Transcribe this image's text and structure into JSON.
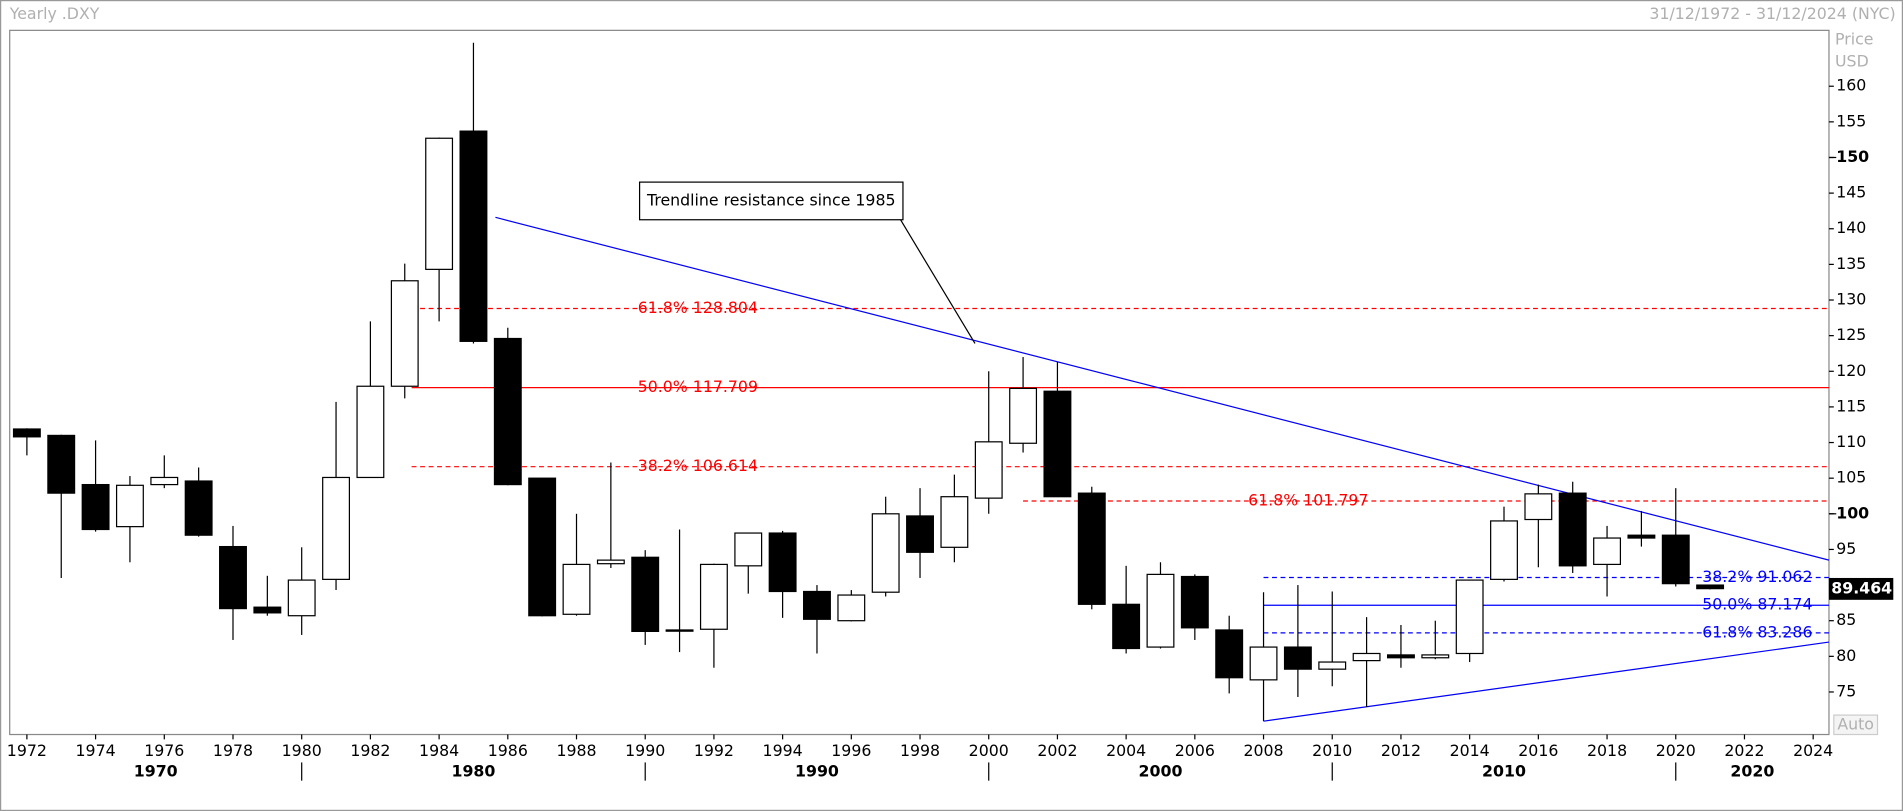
{
  "chart_data": {
    "type": "candlestick",
    "title": "Yearly .DXY",
    "subtitle": "31/12/1972 - 31/12/2024 (NYC)",
    "y_axis_label": "Price",
    "y_axis_unit": "USD",
    "button": "Auto",
    "x": [
      1972,
      1973,
      1974,
      1975,
      1976,
      1977,
      1978,
      1979,
      1980,
      1981,
      1982,
      1983,
      1984,
      1985,
      1986,
      1987,
      1988,
      1989,
      1990,
      1991,
      1992,
      1993,
      1994,
      1995,
      1996,
      1997,
      1998,
      1999,
      2000,
      2001,
      2002,
      2003,
      2004,
      2005,
      2006,
      2007,
      2008,
      2009,
      2010,
      2011,
      2012,
      2013,
      2014,
      2015,
      2016,
      2017,
      2018,
      2019,
      2020,
      2021
    ],
    "open": [
      111.9,
      111.0,
      104.1,
      98.2,
      104.1,
      104.6,
      95.4,
      86.9,
      85.7,
      90.8,
      105.1,
      117.9,
      134.3,
      153.7,
      124.6,
      105.0,
      85.9,
      93.0,
      93.9,
      83.7,
      83.8,
      92.7,
      97.3,
      89.1,
      85.0,
      89.0,
      99.7,
      95.3,
      102.2,
      109.9,
      117.2,
      102.9,
      87.3,
      81.3,
      91.2,
      83.7,
      76.7,
      81.3,
      78.2,
      79.4,
      80.2,
      79.8,
      80.4,
      90.8,
      99.2,
      102.9,
      92.9,
      97.0,
      97.0,
      90.0
    ],
    "high": [
      112.0,
      111.1,
      110.3,
      105.3,
      108.2,
      106.5,
      98.3,
      91.3,
      95.3,
      115.7,
      127.0,
      135.1,
      152.8,
      166.1,
      126.1,
      105.0,
      100.0,
      107.2,
      94.9,
      97.8,
      93.0,
      97.3,
      97.6,
      90.0,
      89.3,
      102.4,
      103.6,
      105.5,
      120.0,
      122.0,
      121.3,
      103.8,
      92.7,
      93.2,
      91.5,
      85.7,
      89.0,
      90.0,
      89.1,
      85.5,
      84.4,
      85.0,
      90.7,
      101.0,
      104.1,
      104.5,
      98.3,
      100.4,
      103.6,
      90.0
    ],
    "low": [
      108.2,
      91.0,
      97.5,
      93.2,
      103.6,
      96.8,
      82.3,
      85.7,
      83.0,
      89.3,
      105.1,
      116.2,
      127.0,
      123.9,
      104.0,
      85.6,
      85.7,
      92.4,
      81.6,
      80.6,
      78.4,
      88.8,
      85.4,
      80.4,
      84.9,
      88.4,
      91.0,
      93.2,
      100.0,
      108.6,
      102.4,
      86.6,
      80.4,
      81.1,
      82.3,
      74.8,
      70.9,
      74.3,
      75.8,
      72.9,
      78.4,
      79.6,
      79.2,
      90.5,
      92.5,
      91.7,
      88.4,
      95.4,
      89.8,
      89.4
    ],
    "close": [
      110.8,
      102.9,
      97.8,
      104.0,
      105.1,
      97.0,
      86.7,
      86.1,
      90.7,
      105.1,
      117.9,
      132.7,
      152.7,
      124.2,
      104.1,
      85.7,
      92.9,
      93.5,
      83.5,
      83.6,
      92.9,
      97.3,
      89.1,
      85.2,
      88.6,
      100.0,
      94.6,
      102.4,
      110.1,
      117.6,
      102.4,
      87.3,
      81.1,
      91.5,
      84.0,
      77.0,
      81.3,
      78.2,
      79.2,
      80.4,
      79.8,
      80.2,
      90.7,
      99.0,
      102.8,
      92.7,
      96.6,
      96.6,
      90.2,
      89.5
    ],
    "up_color": "#ffffff",
    "down_color": "#000000",
    "xlim": [
      1971.5,
      2024.46
    ],
    "xticks": [
      1972,
      1974,
      1976,
      1978,
      1980,
      1982,
      1984,
      1986,
      1988,
      1990,
      1992,
      1994,
      1996,
      1998,
      2000,
      2002,
      2004,
      2006,
      2008,
      2010,
      2012,
      2014,
      2016,
      2018,
      2020,
      2022,
      2024
    ],
    "decades": [
      1970,
      1980,
      1990,
      2000,
      2010,
      2020
    ],
    "ylim": [
      69.03,
      167.84
    ],
    "yticks": [
      75,
      80,
      85,
      90,
      95,
      100,
      105,
      110,
      115,
      120,
      125,
      130,
      135,
      140,
      145,
      150,
      155,
      160
    ],
    "major_yticks": [
      100,
      150
    ],
    "last_price": 89.464,
    "fib_levels": [
      {
        "from": 1983.2,
        "color": "#ff0000",
        "levels": [
          {
            "label": "61.8% 128.804",
            "value": 128.804,
            "style": "dashed"
          },
          {
            "label": "50.0% 117.709",
            "value": 117.709,
            "style": "solid"
          },
          {
            "label": "38.2% 106.614",
            "value": 106.614,
            "style": "dashed"
          }
        ]
      },
      {
        "from": 2001.0,
        "color": "#ff0000",
        "levels": [
          {
            "label": "61.8% 101.797",
            "value": 101.797,
            "style": "dashed"
          }
        ]
      },
      {
        "from": 2008.0,
        "color": "#0000ff",
        "levels": [
          {
            "label": "38.2% 91.062",
            "value": 91.062,
            "style": "dashed"
          },
          {
            "label": "50.0% 87.174",
            "value": 87.174,
            "style": "solid"
          },
          {
            "label": "61.8% 83.286",
            "value": 83.286,
            "style": "dashed"
          }
        ]
      }
    ],
    "trendlines": [
      {
        "x": [
          1985.64,
          2024.46
        ],
        "values": [
          141.6,
          93.5
        ],
        "color": "#0000ff"
      },
      {
        "x": [
          2008.0,
          2024.46
        ],
        "values": [
          70.9,
          82.0
        ],
        "color": "#0000ff"
      }
    ],
    "annotation": {
      "text": "Trendline resistance since 1985",
      "x": 1999.6,
      "y": 123.9
    }
  }
}
